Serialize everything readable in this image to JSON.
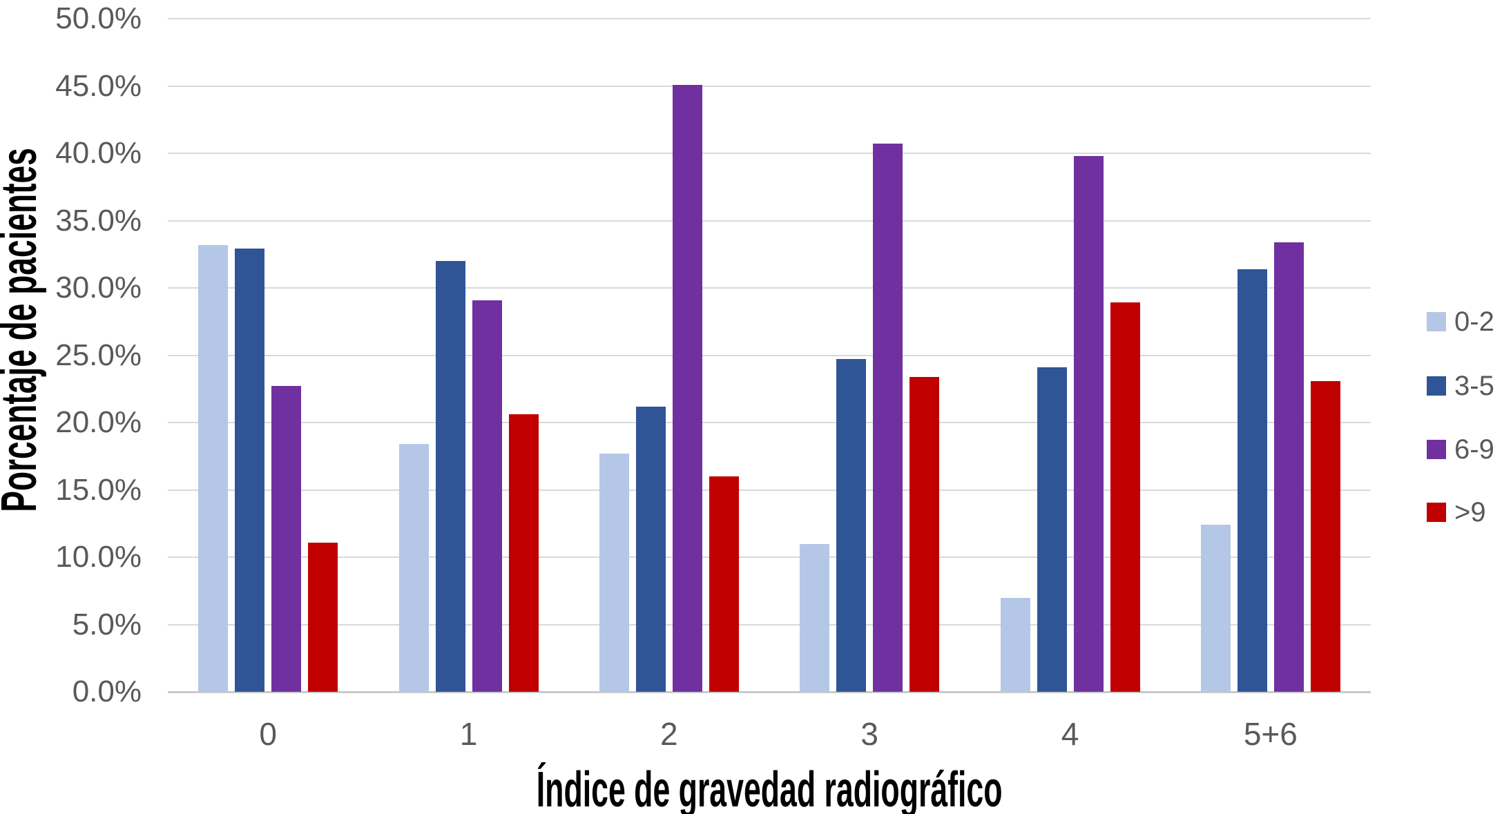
{
  "chart_data": {
    "type": "bar",
    "title": "",
    "categories": [
      "0",
      "1",
      "2",
      "3",
      "4",
      "5+6"
    ],
    "series": [
      {
        "name": "0-2",
        "color": "#B4C7E7",
        "values": [
          33.2,
          18.4,
          17.7,
          11.0,
          7.0,
          12.4
        ]
      },
      {
        "name": "3-5",
        "color": "#2F5597",
        "values": [
          32.9,
          32.0,
          21.2,
          24.7,
          24.1,
          31.4
        ]
      },
      {
        "name": "6-9",
        "color": "#7030A0",
        "values": [
          22.7,
          29.1,
          45.1,
          40.7,
          39.8,
          33.4
        ]
      },
      {
        "name": ">9",
        "color": "#C00000",
        "values": [
          11.1,
          20.6,
          16.0,
          23.4,
          28.9,
          23.1
        ]
      }
    ],
    "xlabel": "Índice de gravedad radiográfico",
    "ylabel": "Porcentaje de pacientes",
    "ylim": [
      0,
      50
    ],
    "ytick_step": 5,
    "y_tick_labels": [
      "50.0%",
      "45.0%",
      "40.0%",
      "35.0%",
      "30.0%",
      "25.0%",
      "20.0%",
      "15.0%",
      "10.0%",
      "5.0%",
      "0.0%"
    ],
    "grid": true,
    "grid_color": "#D9D9D9",
    "axis_line_color": "#C9C9C9",
    "tick_label_color": "#595959",
    "legend_position": "right",
    "legend_labels": [
      "0-2",
      "3-5",
      "6-9",
      ">9"
    ]
  }
}
